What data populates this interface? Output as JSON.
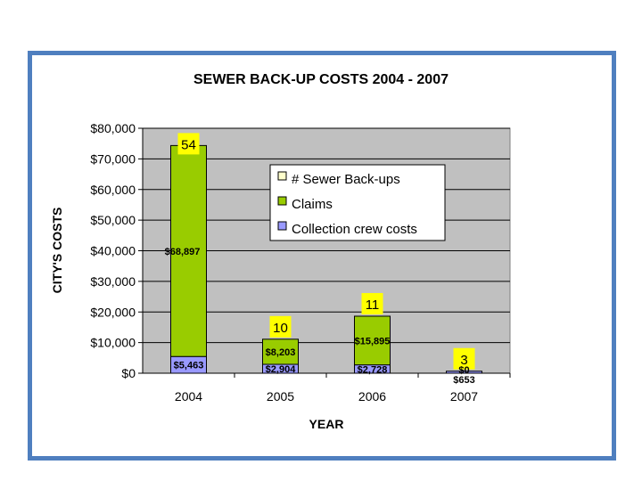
{
  "chart_data": {
    "type": "bar",
    "stacked": true,
    "title": "SEWER BACK-UP COSTS 2004 - 2007",
    "xlabel": "YEAR",
    "ylabel": "CITY'S COSTS",
    "categories": [
      "2004",
      "2005",
      "2006",
      "2007"
    ],
    "yticks": [
      "$0",
      "$10,000",
      "$20,000",
      "$30,000",
      "$40,000",
      "$50,000",
      "$60,000",
      "$70,000",
      "$80,000"
    ],
    "ylim": [
      0,
      80000
    ],
    "grid": true,
    "legend_position": "upper-right",
    "series": [
      {
        "name": "Collection crew costs",
        "color": "#9999ff",
        "values": [
          5463,
          2904,
          2728,
          653
        ],
        "labels": [
          "$5,463",
          "$2,904",
          "$2,728",
          "$653"
        ]
      },
      {
        "name": "Claims",
        "color": "#99cc00",
        "values": [
          68897,
          8203,
          15895,
          0
        ],
        "labels": [
          "$68,897",
          "$8,203",
          "$15,895",
          "$0"
        ]
      }
    ],
    "counts": {
      "name": "# Sewer Back-ups",
      "color": "#ffff00",
      "values": [
        "54",
        "10",
        "11",
        "3"
      ]
    },
    "legend": [
      "# Sewer Back-ups",
      "Claims",
      "Collection crew costs"
    ]
  }
}
